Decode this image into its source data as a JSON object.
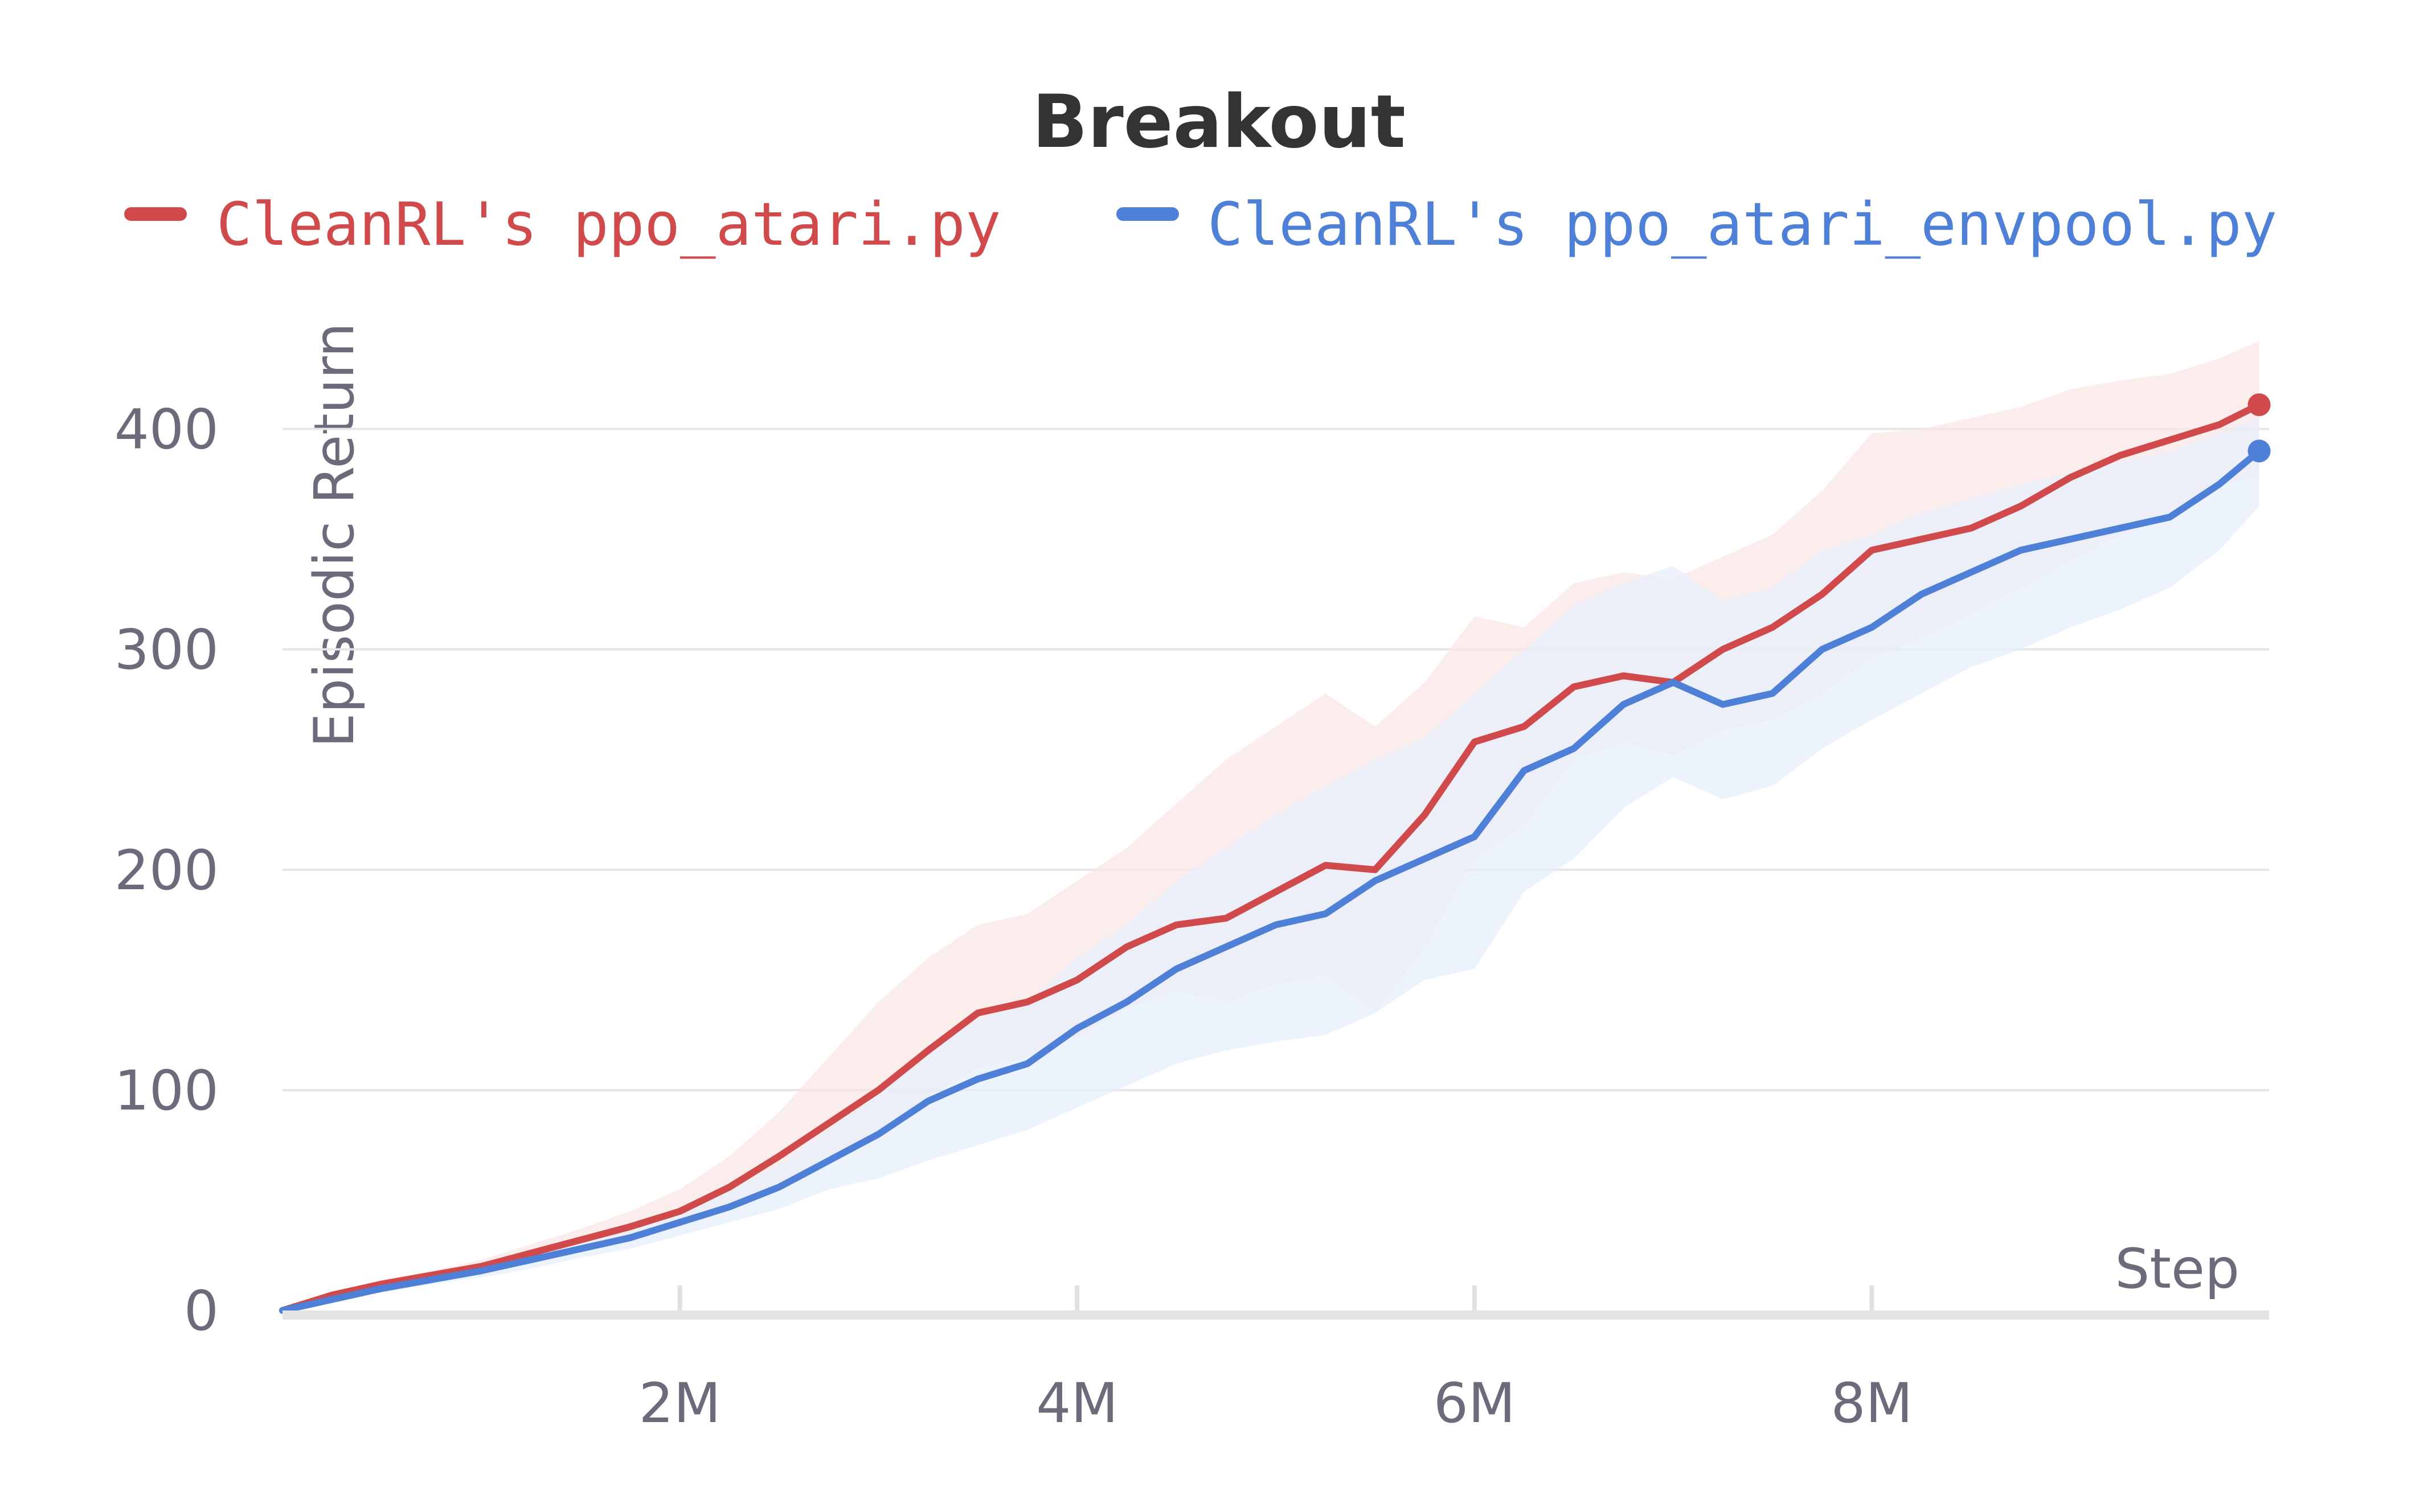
{
  "chart_data": {
    "type": "line",
    "title": "Breakout",
    "xlabel": "Step",
    "ylabel": "Episodic Return",
    "xlim": [
      0,
      10000000
    ],
    "ylim": [
      0,
      450
    ],
    "x_ticks": [
      2000000,
      4000000,
      6000000,
      8000000
    ],
    "x_tick_labels": [
      "2M",
      "4M",
      "6M",
      "8M"
    ],
    "y_ticks": [
      0,
      100,
      200,
      300,
      400
    ],
    "y_tick_labels": [
      "0",
      "100",
      "200",
      "300",
      "400"
    ],
    "grid": "horizontal",
    "legend": "top",
    "x": [
      0,
      250000,
      500000,
      750000,
      1000000,
      1250000,
      1500000,
      1750000,
      2000000,
      2250000,
      2500000,
      2750000,
      3000000,
      3250000,
      3500000,
      3750000,
      4000000,
      4250000,
      4500000,
      4750000,
      5000000,
      5250000,
      5500000,
      5750000,
      6000000,
      6250000,
      6500000,
      6750000,
      7000000,
      7250000,
      7500000,
      7750000,
      8000000,
      8250000,
      8500000,
      8750000,
      9000000,
      9250000,
      9500000,
      9750000,
      9950000
    ],
    "series": [
      {
        "name": "CleanRL's ppo_atari.py",
        "color": "#d04a4c",
        "band_color": "#fbe6e6",
        "values": [
          0,
          7,
          12,
          16,
          20,
          26,
          32,
          38,
          45,
          56,
          70,
          85,
          100,
          118,
          135,
          140,
          150,
          165,
          175,
          178,
          190,
          202,
          200,
          225,
          258,
          265,
          283,
          288,
          285,
          300,
          310,
          325,
          345,
          350,
          355,
          365,
          378,
          388,
          395,
          402,
          411
        ],
        "lower": [
          0,
          6,
          10,
          14,
          17,
          22,
          27,
          32,
          38,
          47,
          58,
          70,
          82,
          97,
          110,
          115,
          124,
          137,
          145,
          140,
          148,
          152,
          135,
          165,
          205,
          220,
          250,
          258,
          252,
          263,
          268,
          280,
          296,
          305,
          316,
          328,
          340,
          352,
          362,
          375,
          378
        ],
        "upper": [
          0,
          8,
          14,
          18,
          23,
          30,
          37,
          45,
          55,
          70,
          90,
          115,
          140,
          160,
          175,
          180,
          195,
          210,
          230,
          250,
          265,
          280,
          265,
          285,
          315,
          310,
          330,
          335,
          332,
          342,
          352,
          372,
          398,
          400,
          405,
          410,
          418,
          422,
          425,
          432,
          440
        ]
      },
      {
        "name": "CleanRL's ppo_atari_envpool.py",
        "color": "#4f80d8",
        "band_color": "#e6eefc",
        "values": [
          0,
          5,
          10,
          14,
          18,
          23,
          28,
          33,
          40,
          47,
          56,
          68,
          80,
          95,
          105,
          112,
          128,
          140,
          155,
          165,
          175,
          180,
          195,
          205,
          215,
          245,
          255,
          275,
          285,
          275,
          280,
          300,
          310,
          325,
          335,
          345,
          350,
          355,
          360,
          375,
          390
        ],
        "lower": [
          0,
          4,
          8,
          12,
          15,
          19,
          24,
          28,
          34,
          40,
          46,
          55,
          60,
          68,
          75,
          82,
          92,
          102,
          112,
          118,
          122,
          125,
          135,
          150,
          155,
          190,
          205,
          228,
          242,
          232,
          238,
          255,
          268,
          280,
          292,
          300,
          310,
          318,
          328,
          345,
          365
        ],
        "upper": [
          0,
          6,
          12,
          16,
          21,
          27,
          33,
          38,
          46,
          54,
          66,
          82,
          98,
          118,
          132,
          140,
          160,
          175,
          195,
          210,
          225,
          238,
          250,
          260,
          280,
          300,
          320,
          330,
          338,
          322,
          328,
          345,
          352,
          362,
          368,
          375,
          380,
          385,
          390,
          398,
          405
        ]
      }
    ]
  }
}
